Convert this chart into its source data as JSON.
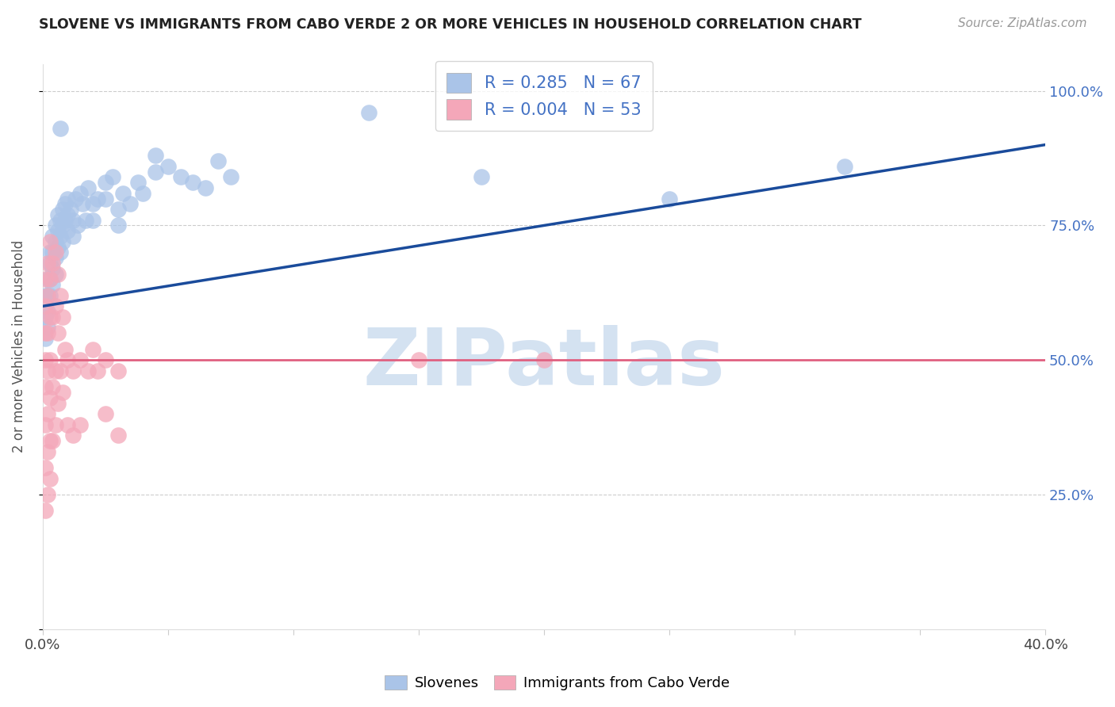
{
  "title": "SLOVENE VS IMMIGRANTS FROM CABO VERDE 2 OR MORE VEHICLES IN HOUSEHOLD CORRELATION CHART",
  "source": "Source: ZipAtlas.com",
  "ylabel": "2 or more Vehicles in Household",
  "xlim": [
    0.0,
    0.4
  ],
  "ylim": [
    0.0,
    1.05
  ],
  "blue_R": 0.285,
  "blue_N": 67,
  "pink_R": 0.004,
  "pink_N": 53,
  "blue_color": "#aac4e8",
  "pink_color": "#f4a7b9",
  "blue_line_color": "#1a4b9b",
  "pink_line_color": "#e06080",
  "watermark_color": "#d0dff0",
  "title_color": "#222222",
  "source_color": "#999999",
  "axis_color": "#4472c4",
  "grid_color": "#cccccc",
  "blue_scatter_x": [
    0.001,
    0.001,
    0.001,
    0.002,
    0.002,
    0.002,
    0.002,
    0.003,
    0.003,
    0.003,
    0.003,
    0.004,
    0.004,
    0.004,
    0.004,
    0.005,
    0.005,
    0.005,
    0.005,
    0.006,
    0.006,
    0.006,
    0.007,
    0.007,
    0.007,
    0.008,
    0.008,
    0.008,
    0.009,
    0.009,
    0.01,
    0.01,
    0.01,
    0.011,
    0.012,
    0.012,
    0.013,
    0.014,
    0.015,
    0.016,
    0.017,
    0.018,
    0.02,
    0.02,
    0.022,
    0.025,
    0.025,
    0.028,
    0.03,
    0.03,
    0.032,
    0.035,
    0.038,
    0.04,
    0.045,
    0.05,
    0.055,
    0.06,
    0.065,
    0.07,
    0.075,
    0.13,
    0.175,
    0.25,
    0.32,
    0.007,
    0.045
  ],
  "blue_scatter_y": [
    0.62,
    0.58,
    0.54,
    0.65,
    0.62,
    0.59,
    0.56,
    0.7,
    0.68,
    0.65,
    0.62,
    0.73,
    0.7,
    0.67,
    0.64,
    0.75,
    0.72,
    0.69,
    0.66,
    0.77,
    0.74,
    0.71,
    0.76,
    0.73,
    0.7,
    0.78,
    0.75,
    0.72,
    0.79,
    0.76,
    0.8,
    0.77,
    0.74,
    0.78,
    0.76,
    0.73,
    0.8,
    0.75,
    0.81,
    0.79,
    0.76,
    0.82,
    0.79,
    0.76,
    0.8,
    0.83,
    0.8,
    0.84,
    0.78,
    0.75,
    0.81,
    0.79,
    0.83,
    0.81,
    0.85,
    0.86,
    0.84,
    0.83,
    0.82,
    0.87,
    0.84,
    0.96,
    0.84,
    0.8,
    0.86,
    0.93,
    0.88
  ],
  "pink_scatter_x": [
    0.001,
    0.001,
    0.001,
    0.001,
    0.001,
    0.001,
    0.001,
    0.001,
    0.002,
    0.002,
    0.002,
    0.002,
    0.002,
    0.002,
    0.002,
    0.003,
    0.003,
    0.003,
    0.003,
    0.003,
    0.003,
    0.003,
    0.004,
    0.004,
    0.004,
    0.004,
    0.005,
    0.005,
    0.005,
    0.005,
    0.006,
    0.006,
    0.006,
    0.007,
    0.007,
    0.008,
    0.008,
    0.009,
    0.01,
    0.01,
    0.012,
    0.012,
    0.015,
    0.015,
    0.018,
    0.02,
    0.022,
    0.025,
    0.025,
    0.03,
    0.03,
    0.15,
    0.2
  ],
  "pink_scatter_y": [
    0.65,
    0.6,
    0.55,
    0.5,
    0.45,
    0.38,
    0.3,
    0.22,
    0.68,
    0.62,
    0.55,
    0.48,
    0.4,
    0.33,
    0.25,
    0.72,
    0.65,
    0.58,
    0.5,
    0.43,
    0.35,
    0.28,
    0.68,
    0.58,
    0.45,
    0.35,
    0.7,
    0.6,
    0.48,
    0.38,
    0.66,
    0.55,
    0.42,
    0.62,
    0.48,
    0.58,
    0.44,
    0.52,
    0.5,
    0.38,
    0.48,
    0.36,
    0.5,
    0.38,
    0.48,
    0.52,
    0.48,
    0.5,
    0.4,
    0.48,
    0.36,
    0.5,
    0.5
  ]
}
